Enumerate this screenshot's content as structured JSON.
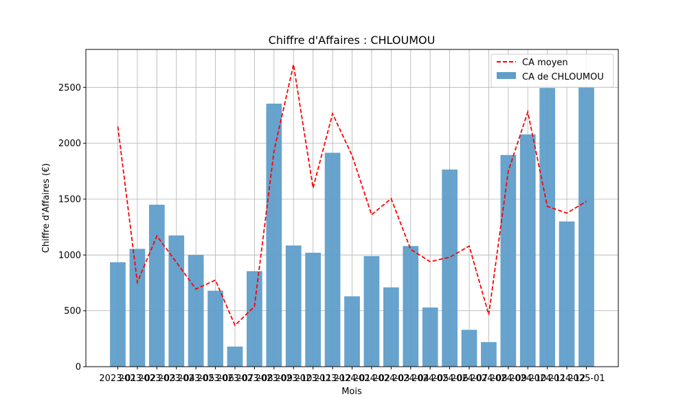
{
  "chart_data": {
    "type": "bar",
    "title": "Chiffre d'Affaires : CHLOUMOU",
    "xlabel": "Mois",
    "ylabel": "Chiffre d'Affaires (€)",
    "ylim": [
      0,
      2840
    ],
    "yticks": [
      0,
      500,
      1000,
      1500,
      2000,
      2500
    ],
    "grid": true,
    "legend_position": "top-right",
    "categories": [
      "2023-01",
      "2023-02",
      "2023-03",
      "2023-04",
      "2023-05",
      "2023-06",
      "2023-07",
      "2023-08",
      "2023-09",
      "2023-10",
      "2023-11",
      "2023-12",
      "2024-01",
      "2024-02",
      "2024-03",
      "2024-04",
      "2024-05",
      "2024-06",
      "2024-07",
      "2024-08",
      "2024-09",
      "2024-10",
      "2024-11",
      "2024-12",
      "2025-01"
    ],
    "series": [
      {
        "name": "CA de CHLOUMOU",
        "type": "bar",
        "color": "#5f9ec9",
        "values": [
          935,
          1055,
          1450,
          1175,
          1000,
          680,
          180,
          855,
          2355,
          1085,
          1020,
          1915,
          630,
          990,
          710,
          1080,
          530,
          1765,
          330,
          220,
          1895,
          2080,
          2495,
          1300,
          2500
        ]
      },
      {
        "name": "CA moyen",
        "type": "line",
        "style": "dashed",
        "color": "#ff0000",
        "values": [
          2150,
          755,
          1170,
          935,
          695,
          775,
          370,
          540,
          1930,
          2705,
          1600,
          2265,
          1890,
          1360,
          1505,
          1050,
          940,
          980,
          1080,
          465,
          1750,
          2280,
          1435,
          1375,
          1480
        ]
      }
    ]
  }
}
